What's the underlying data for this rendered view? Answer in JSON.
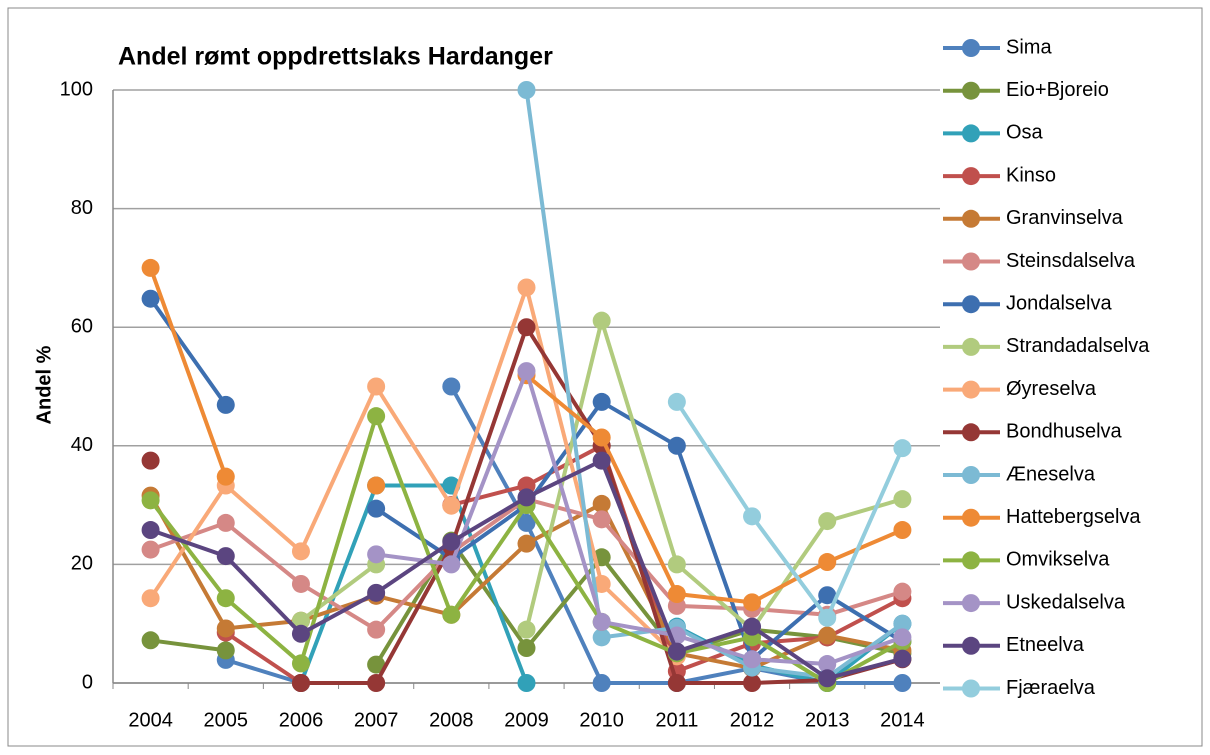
{
  "chart_data": {
    "type": "line",
    "title": "Andel rømt oppdrettslaks Hardanger",
    "y_label": "Andel %",
    "categories": [
      "2004",
      "2005",
      "2006",
      "2007",
      "2008",
      "2009",
      "2010",
      "2011",
      "2012",
      "2013",
      "2014"
    ],
    "ylim": [
      0,
      100
    ],
    "yticks": [
      0,
      20,
      40,
      60,
      80,
      100
    ],
    "grid": true,
    "legend": "right",
    "series": [
      {
        "name": "Sima",
        "color": "#4f81bd",
        "values": [
          null,
          3.9,
          0,
          null,
          50,
          27,
          0,
          0,
          2.5,
          0,
          0
        ]
      },
      {
        "name": "Eio+Bjoreio",
        "color": "#77933c",
        "values": [
          7.2,
          5.5,
          null,
          3.1,
          24,
          5.9,
          21.2,
          5,
          9,
          7.7,
          5
        ]
      },
      {
        "name": "Osa",
        "color": "#31a1b8",
        "values": [
          null,
          null,
          0,
          33.3,
          33.3,
          0,
          null,
          9.5,
          3,
          0,
          10
        ]
      },
      {
        "name": "Kinso",
        "color": "#c0504d",
        "values": [
          null,
          8.5,
          0,
          null,
          30,
          33.3,
          40,
          2,
          6.7,
          7.7,
          14.3
        ]
      },
      {
        "name": "Granvinselva",
        "color": "#c57a35",
        "values": [
          31.6,
          9.2,
          10.5,
          14.7,
          11.5,
          23.5,
          30.2,
          5,
          2.5,
          8,
          5.5
        ]
      },
      {
        "name": "Steinsdalselva",
        "color": "#d58886",
        "values": [
          22.5,
          27,
          16.7,
          9,
          22,
          31,
          27.6,
          13,
          12.5,
          11.5,
          15.4
        ]
      },
      {
        "name": "Jondalselva",
        "color": "#3d6fb0",
        "values": [
          64.8,
          46.9,
          null,
          29.4,
          21,
          30,
          47.4,
          40,
          4,
          14.8,
          7
        ]
      },
      {
        "name": "Strandadalselva",
        "color": "#b1cb7e",
        "values": [
          null,
          null,
          10.5,
          20,
          null,
          9,
          61.1,
          20,
          9,
          27.3,
          31
        ]
      },
      {
        "name": "Øyreselva",
        "color": "#f9a978",
        "values": [
          14.3,
          33.3,
          22.2,
          50,
          29.9,
          66.7,
          16.7,
          4.5,
          null,
          null,
          null
        ]
      },
      {
        "name": "Bondhuselva",
        "color": "#953735",
        "values": [
          37.5,
          null,
          0,
          0,
          23,
          60,
          40,
          0,
          0,
          0.5,
          4
        ]
      },
      {
        "name": "Æneselva",
        "color": "#7cbad4",
        "values": [
          null,
          null,
          null,
          null,
          null,
          100,
          7.7,
          9.3,
          2.6,
          1,
          10
        ]
      },
      {
        "name": "Hattebergselva",
        "color": "#ee8a35",
        "values": [
          70,
          34.8,
          null,
          33.3,
          null,
          51.9,
          41.4,
          15,
          13.6,
          20.4,
          25.8
        ]
      },
      {
        "name": "Omvikselva",
        "color": "#8db342",
        "values": [
          30.8,
          14.3,
          3.3,
          45,
          11.5,
          30,
          10.3,
          5,
          7.7,
          0,
          7
        ]
      },
      {
        "name": "Uskedalselva",
        "color": "#a493c6",
        "values": [
          null,
          null,
          null,
          21.7,
          20,
          52.6,
          10.3,
          8,
          4,
          3.2,
          7.7
        ]
      },
      {
        "name": "Etneelva",
        "color": "#5b4580",
        "values": [
          25.8,
          21.4,
          8.3,
          15.2,
          23.8,
          31.3,
          37.5,
          5.3,
          9.5,
          0.8,
          4.1
        ]
      },
      {
        "name": "Fjæraelva",
        "color": "#93cddd",
        "values": [
          null,
          null,
          null,
          null,
          null,
          null,
          null,
          47.4,
          28.1,
          11,
          39.6
        ]
      }
    ]
  }
}
